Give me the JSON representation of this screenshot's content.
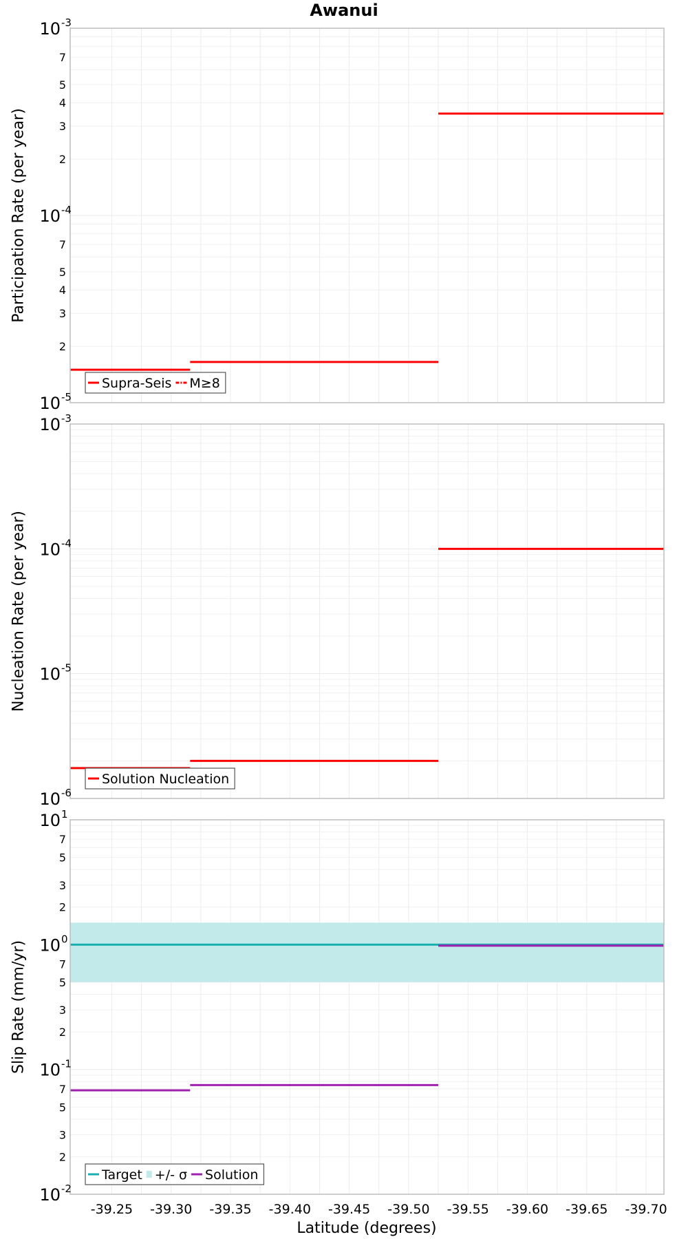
{
  "chart_data": [
    {
      "type": "line",
      "title": "Awanui",
      "ylabel": "Participation Rate (per year)",
      "xlabel": "",
      "yscale": "log",
      "ylim": [
        1e-05,
        0.001
      ],
      "xlim": [
        -39.215,
        -39.715
      ],
      "x_ticks": [
        "-39.25",
        "-39.30",
        "-39.35",
        "-39.40",
        "-39.45",
        "-39.50",
        "-39.55",
        "-39.60",
        "-39.65",
        "-39.70"
      ],
      "x_tick_values": [
        -39.25,
        -39.3,
        -39.35,
        -39.4,
        -39.45,
        -39.5,
        -39.55,
        -39.6,
        -39.65,
        -39.7
      ],
      "y_major_ticks": [
        {
          "base": "10",
          "exp": "-5",
          "value": 1e-05
        },
        {
          "base": "10",
          "exp": "-4",
          "value": 0.0001
        },
        {
          "base": "10",
          "exp": "-3",
          "value": 0.001
        }
      ],
      "y_minor_labels": [
        {
          "label": "2",
          "value": 2e-05
        },
        {
          "label": "3",
          "value": 3e-05
        },
        {
          "label": "4",
          "value": 4e-05
        },
        {
          "label": "5",
          "value": 5e-05
        },
        {
          "label": "7",
          "value": 7e-05
        },
        {
          "label": "2",
          "value": 0.0002
        },
        {
          "label": "3",
          "value": 0.0003
        },
        {
          "label": "4",
          "value": 0.0004
        },
        {
          "label": "5",
          "value": 0.0005
        },
        {
          "label": "7",
          "value": 0.0007
        }
      ],
      "grid": true,
      "legend_placement": "bottom-left",
      "series": [
        {
          "name": "Supra-Seis",
          "color": "#ff0000",
          "style": "solid",
          "segments": [
            {
              "x": [
                -39.215,
                -39.316
              ],
              "y": [
                1.5e-05,
                1.5e-05
              ]
            },
            {
              "x": [
                -39.316,
                -39.525
              ],
              "y": [
                1.65e-05,
                1.65e-05
              ]
            },
            {
              "x": [
                -39.525,
                -39.715
              ],
              "y": [
                0.00035,
                0.00035
              ]
            }
          ]
        },
        {
          "name": "M≥8",
          "color": "#ff0000",
          "style": "dashdot",
          "segments": []
        }
      ]
    },
    {
      "type": "line",
      "title": "",
      "ylabel": "Nucleation Rate (per year)",
      "xlabel": "",
      "yscale": "log",
      "ylim": [
        1e-06,
        0.001
      ],
      "xlim": [
        -39.215,
        -39.715
      ],
      "y_major_ticks": [
        {
          "base": "10",
          "exp": "-6",
          "value": 1e-06
        },
        {
          "base": "10",
          "exp": "-5",
          "value": 1e-05
        },
        {
          "base": "10",
          "exp": "-4",
          "value": 0.0001
        },
        {
          "base": "10",
          "exp": "-3",
          "value": 0.001
        }
      ],
      "y_minor_labels": [],
      "grid": true,
      "legend_placement": "bottom-left",
      "series": [
        {
          "name": "Solution Nucleation",
          "color": "#ff0000",
          "style": "solid",
          "segments": [
            {
              "x": [
                -39.215,
                -39.316
              ],
              "y": [
                1.75e-06,
                1.75e-06
              ]
            },
            {
              "x": [
                -39.316,
                -39.525
              ],
              "y": [
                2e-06,
                2e-06
              ]
            },
            {
              "x": [
                -39.525,
                -39.715
              ],
              "y": [
                0.0001,
                0.0001
              ]
            }
          ]
        }
      ]
    },
    {
      "type": "line",
      "title": "",
      "ylabel": "Slip Rate (mm/yr)",
      "xlabel": "Latitude (degrees)",
      "yscale": "log",
      "ylim": [
        0.01,
        10
      ],
      "xlim": [
        -39.215,
        -39.715
      ],
      "y_major_ticks": [
        {
          "base": "10",
          "exp": "-2",
          "value": 0.01
        },
        {
          "base": "10",
          "exp": "-1",
          "value": 0.1
        },
        {
          "base": "10",
          "exp": "0",
          "value": 1
        },
        {
          "base": "10",
          "exp": "1",
          "value": 10
        }
      ],
      "y_minor_labels": [
        {
          "label": "2",
          "value": 0.02
        },
        {
          "label": "3",
          "value": 0.03
        },
        {
          "label": "5",
          "value": 0.05
        },
        {
          "label": "7",
          "value": 0.07
        },
        {
          "label": "2",
          "value": 0.2
        },
        {
          "label": "3",
          "value": 0.3
        },
        {
          "label": "5",
          "value": 0.5
        },
        {
          "label": "7",
          "value": 0.7
        },
        {
          "label": "2",
          "value": 2
        },
        {
          "label": "3",
          "value": 3
        },
        {
          "label": "5",
          "value": 5
        },
        {
          "label": "7",
          "value": 7
        }
      ],
      "grid": true,
      "legend_placement": "bottom-left",
      "band": {
        "name": "+/- σ",
        "color": "#c2eaea",
        "y": [
          0.5,
          1.5
        ],
        "x": [
          -39.215,
          -39.715
        ]
      },
      "series": [
        {
          "name": "Target",
          "color": "#1aafaf",
          "style": "solid",
          "segments": [
            {
              "x": [
                -39.215,
                -39.525
              ],
              "y": [
                1.0,
                1.0
              ]
            },
            {
              "x": [
                -39.525,
                -39.715
              ],
              "y": [
                1.0,
                1.0
              ]
            }
          ]
        },
        {
          "name": "Solution",
          "color": "#a020b0",
          "style": "solid",
          "segments": [
            {
              "x": [
                -39.215,
                -39.316
              ],
              "y": [
                0.068,
                0.068
              ]
            },
            {
              "x": [
                -39.316,
                -39.525
              ],
              "y": [
                0.075,
                0.075
              ]
            },
            {
              "x": [
                -39.525,
                -39.715
              ],
              "y": [
                0.98,
                0.98
              ]
            }
          ]
        }
      ]
    }
  ]
}
